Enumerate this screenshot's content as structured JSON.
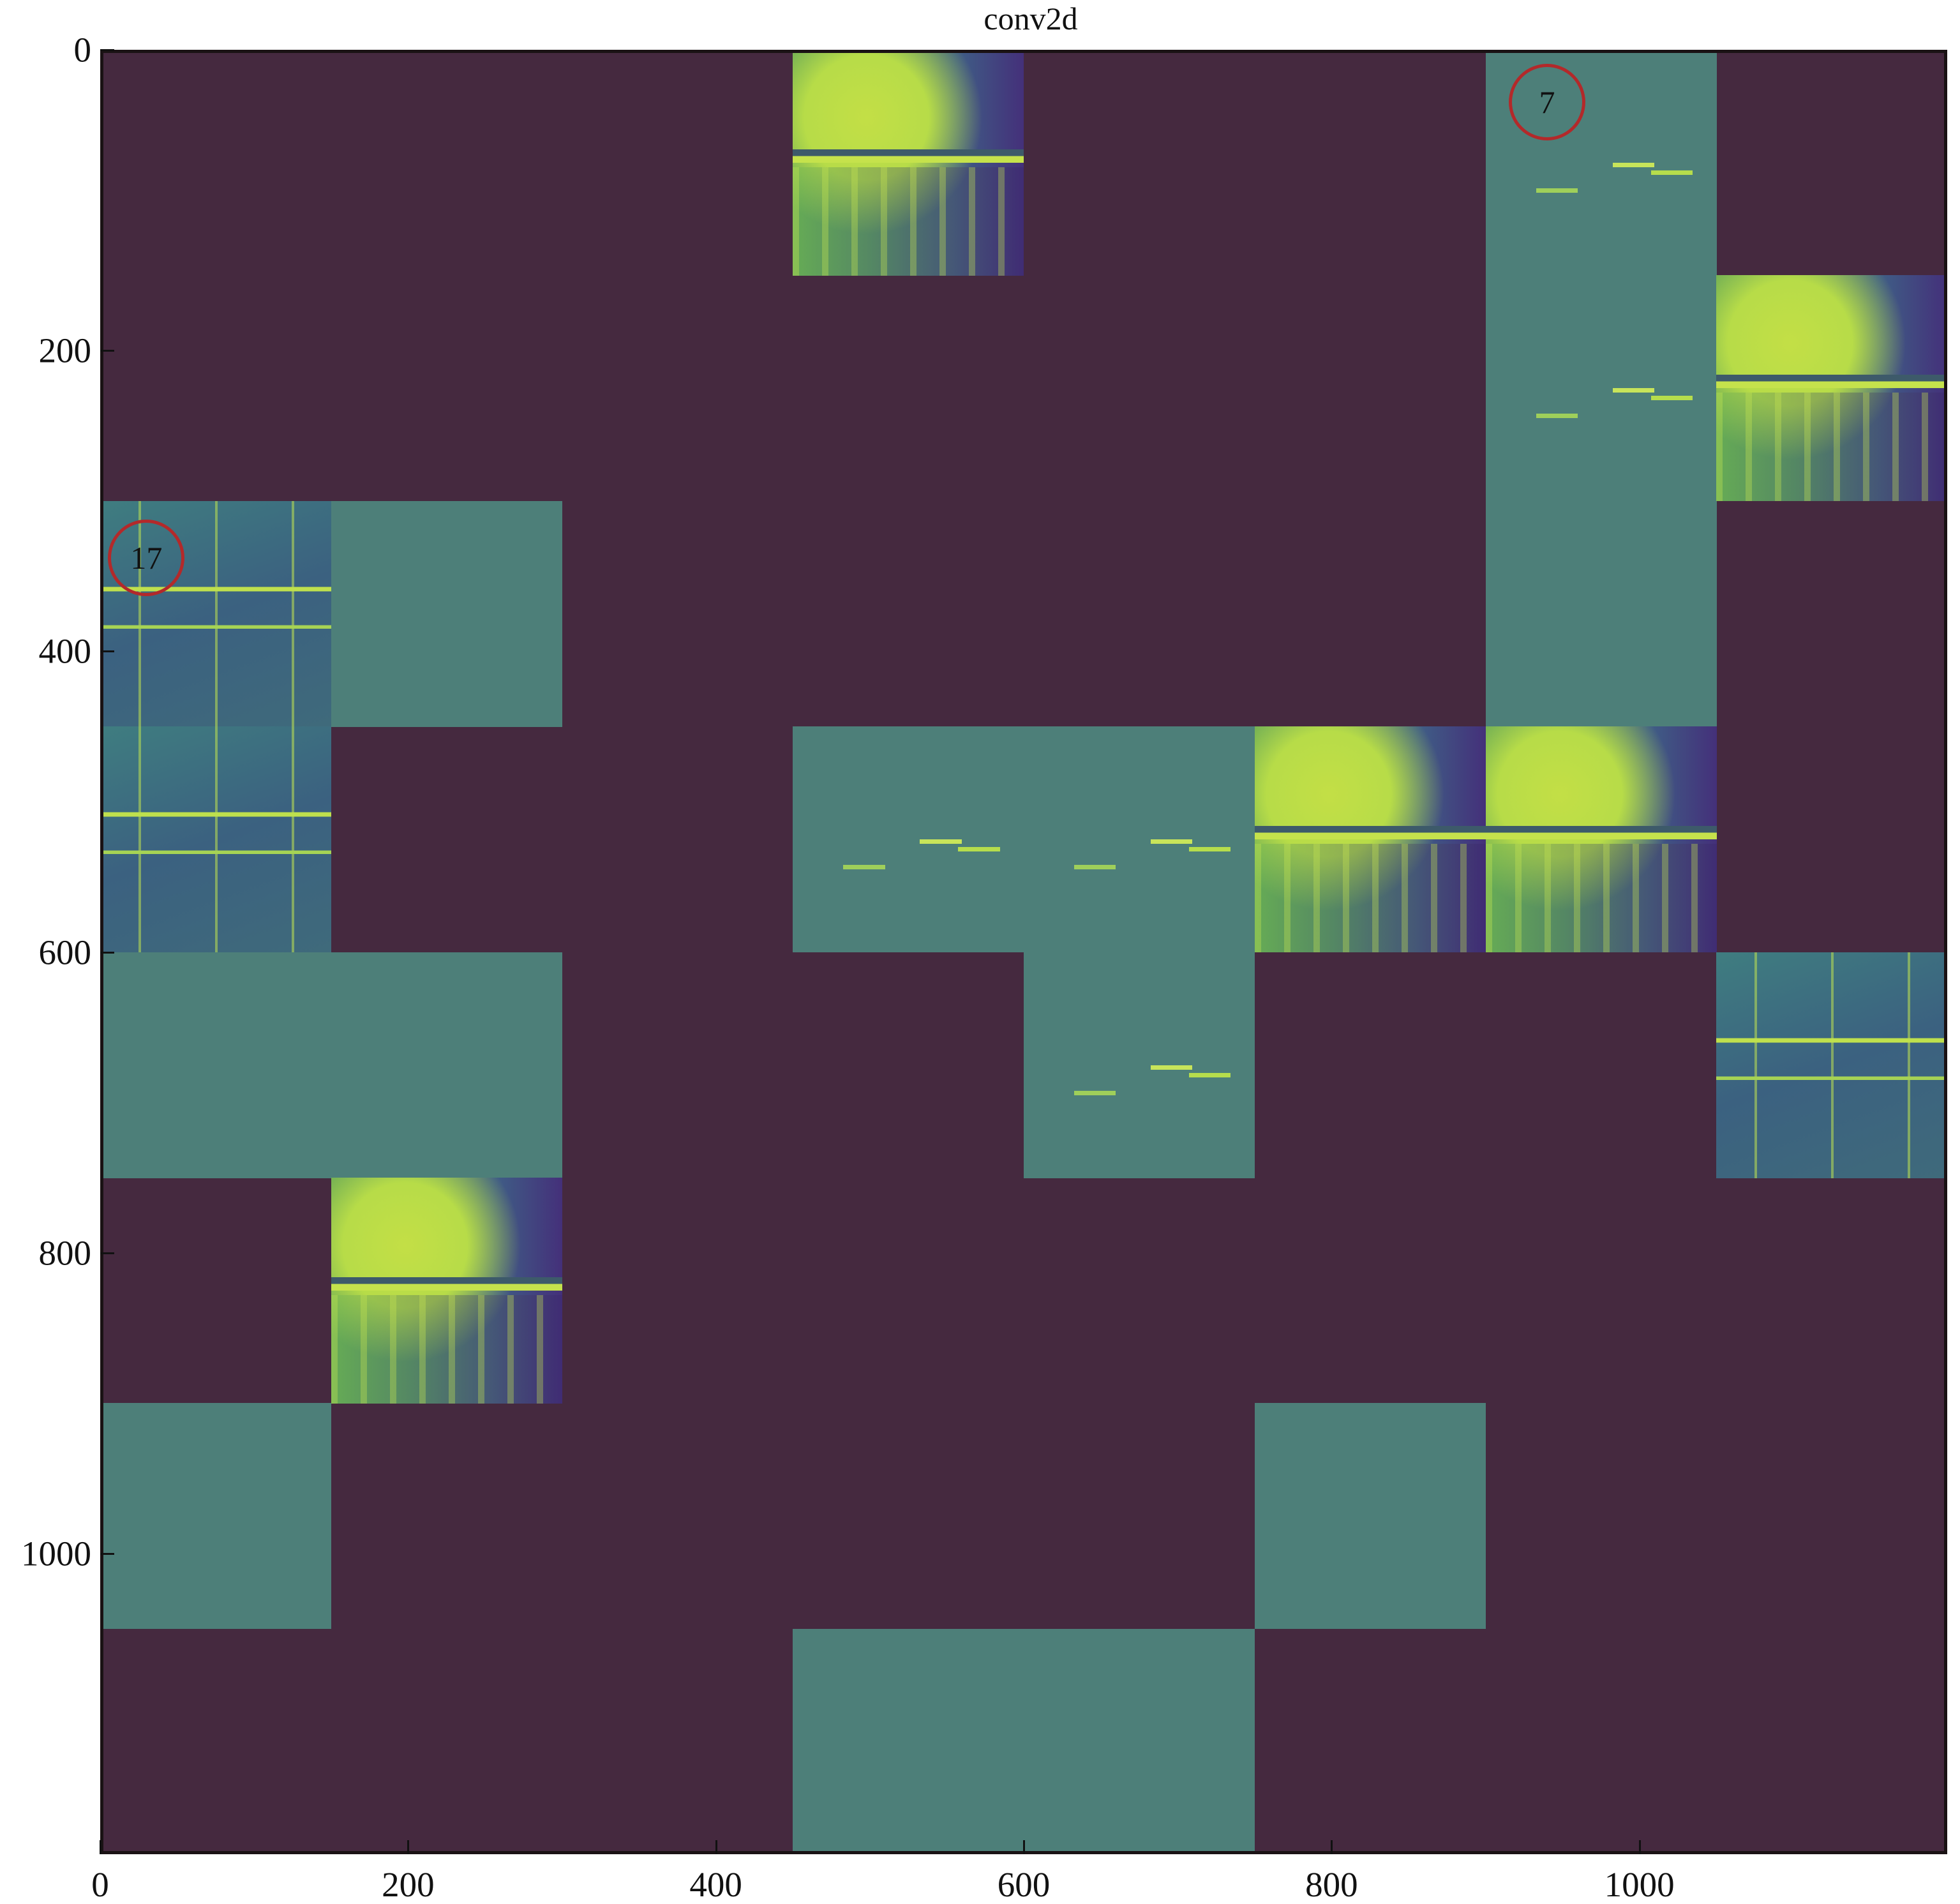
{
  "chart_data": {
    "type": "heatmap",
    "title": "conv2d",
    "xlabel": "",
    "ylabel": "",
    "xlim": [
      0,
      1200
    ],
    "ylim": [
      1200,
      0
    ],
    "xticks": [
      0,
      200,
      400,
      600,
      800,
      1000
    ],
    "yticks": [
      0,
      200,
      400,
      600,
      800,
      1000
    ],
    "grid": false,
    "tile_size": 150,
    "grid_shape": [
      8,
      8
    ],
    "colors": {
      "background": "#45293f",
      "flat": "#4d7f79",
      "high": "#c3df46",
      "low": "#44307a"
    },
    "tiles": [
      {
        "row": 0,
        "col": 3,
        "kind": "image"
      },
      {
        "row": 0,
        "col": 6,
        "kind": "sparse"
      },
      {
        "row": 1,
        "col": 6,
        "kind": "sparse"
      },
      {
        "row": 1,
        "col": 7,
        "kind": "image"
      },
      {
        "row": 2,
        "col": 0,
        "kind": "edges"
      },
      {
        "row": 2,
        "col": 1,
        "kind": "flat"
      },
      {
        "row": 2,
        "col": 6,
        "kind": "flat"
      },
      {
        "row": 3,
        "col": 0,
        "kind": "edges"
      },
      {
        "row": 3,
        "col": 3,
        "kind": "sparse"
      },
      {
        "row": 3,
        "col": 4,
        "kind": "sparse"
      },
      {
        "row": 3,
        "col": 5,
        "kind": "image"
      },
      {
        "row": 3,
        "col": 6,
        "kind": "image"
      },
      {
        "row": 4,
        "col": 0,
        "kind": "flat"
      },
      {
        "row": 4,
        "col": 1,
        "kind": "flat"
      },
      {
        "row": 4,
        "col": 4,
        "kind": "sparse"
      },
      {
        "row": 4,
        "col": 7,
        "kind": "edges"
      },
      {
        "row": 5,
        "col": 1,
        "kind": "image"
      },
      {
        "row": 6,
        "col": 0,
        "kind": "flat"
      },
      {
        "row": 6,
        "col": 5,
        "kind": "flat"
      },
      {
        "row": 7,
        "col": 3,
        "kind": "flat"
      },
      {
        "row": 7,
        "col": 4,
        "kind": "flat"
      }
    ],
    "annotations": [
      {
        "text": "7",
        "x": 940,
        "y": 22,
        "shape": "circle",
        "color": "#b3292a"
      },
      {
        "text": "17",
        "x": 30,
        "y": 325,
        "shape": "circle",
        "color": "#b3292a"
      }
    ]
  }
}
